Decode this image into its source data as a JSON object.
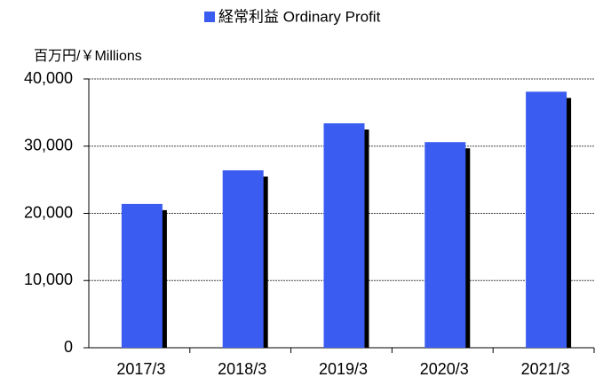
{
  "chart_data": {
    "type": "bar",
    "legend_label": "経常利益 Ordinary Profit",
    "y_axis_label": "百万円/￥Millions",
    "categories": [
      "2017/3",
      "2018/3",
      "2019/3",
      "2020/3",
      "2021/3"
    ],
    "values": [
      21400,
      26400,
      33400,
      30600,
      38100
    ],
    "color": "#3b5cf0",
    "ylim": [
      0,
      40000
    ],
    "yticks": [
      0,
      {
        "value": 10000,
        "label": "10,000"
      },
      {
        "value": 20000,
        "label": "20,000"
      },
      {
        "value": 30000,
        "label": "30,000"
      },
      {
        "value": 40000,
        "label": "40,000"
      }
    ],
    "grid": true
  }
}
